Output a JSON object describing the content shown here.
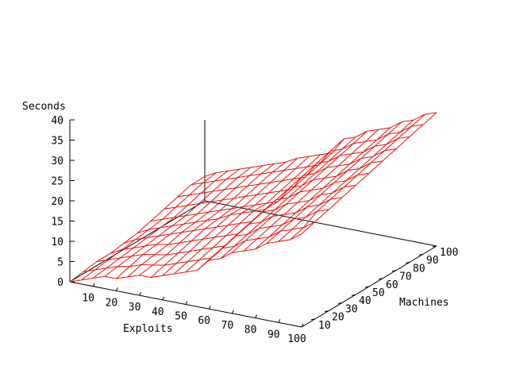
{
  "chart_data": {
    "type": "surface",
    "title": "",
    "xlabel": "Exploits",
    "ylabel": "Machines",
    "zlabel": "Seconds",
    "x_ticks": [
      10,
      20,
      30,
      40,
      50,
      60,
      70,
      80,
      90,
      100
    ],
    "y_ticks": [
      10,
      20,
      30,
      40,
      50,
      60,
      70,
      80,
      90,
      100
    ],
    "z_ticks": [
      0,
      5,
      10,
      15,
      20,
      25,
      30,
      35,
      40
    ],
    "xlim": [
      0,
      100
    ],
    "ylim": [
      0,
      100
    ],
    "zlim": [
      0,
      40
    ],
    "grid": false,
    "legend": "none",
    "colors": {
      "mesh": "#e8120c",
      "axes": "#000000"
    },
    "grid_x": [
      0,
      5,
      10,
      15,
      20,
      25,
      30,
      35,
      40,
      45,
      50,
      55,
      60,
      65,
      70,
      75,
      80,
      85,
      90,
      95,
      100
    ],
    "grid_y": [
      0,
      10,
      20,
      30,
      40,
      50,
      60,
      70,
      80,
      90,
      100
    ],
    "seconds": [
      [
        0,
        1,
        2,
        3,
        3,
        4,
        5,
        5,
        6,
        7,
        8,
        9,
        12,
        13,
        15,
        16,
        17,
        19,
        20,
        21,
        23
      ],
      [
        0.5,
        1.5,
        2.5,
        3.5,
        4,
        5,
        5.5,
        6,
        7,
        8,
        9,
        10,
        13,
        14,
        16,
        17,
        18,
        20,
        21,
        22,
        24
      ],
      [
        1,
        2,
        3,
        4,
        5,
        5.5,
        6,
        7,
        8,
        9,
        10,
        11,
        14,
        15,
        17,
        18,
        19,
        21,
        22,
        24,
        25
      ],
      [
        1,
        2.5,
        3.5,
        4.5,
        5.5,
        6,
        7,
        8,
        9,
        10,
        11,
        12,
        15,
        16,
        18,
        19,
        20,
        22,
        23,
        25,
        26
      ],
      [
        1.5,
        3,
        4,
        5,
        6,
        7,
        8,
        9,
        10,
        11,
        12,
        13,
        16,
        17,
        19,
        20,
        21,
        23,
        24,
        26,
        27
      ],
      [
        2,
        3.5,
        4.5,
        5.5,
        6.5,
        7.5,
        8.5,
        9.5,
        11,
        12,
        13,
        14,
        17,
        18,
        20,
        21,
        22,
        24,
        25,
        27,
        28
      ],
      [
        3,
        4,
        5,
        6,
        7,
        8,
        9,
        10,
        11,
        12,
        13,
        14,
        18,
        19,
        21,
        22,
        23,
        25,
        26,
        28,
        29
      ],
      [
        4,
        5,
        6,
        7,
        8,
        9,
        10,
        11,
        12,
        13,
        14,
        15,
        19,
        20,
        22,
        23,
        24,
        26,
        27,
        29,
        30
      ],
      [
        5,
        6,
        7,
        8,
        9,
        10,
        11,
        12,
        13,
        14,
        15,
        16,
        20,
        21,
        23,
        24,
        25,
        27,
        28,
        30,
        31
      ],
      [
        6,
        7,
        8,
        9,
        10,
        11,
        12,
        13,
        14,
        15,
        16,
        17,
        21,
        22,
        24,
        25,
        26,
        28,
        29,
        31,
        32
      ],
      [
        6,
        7.5,
        8.5,
        9.5,
        10.5,
        11.5,
        12.5,
        13.5,
        15,
        16,
        17,
        18,
        22,
        23,
        25,
        26,
        27,
        29,
        30,
        32,
        33
      ]
    ]
  }
}
